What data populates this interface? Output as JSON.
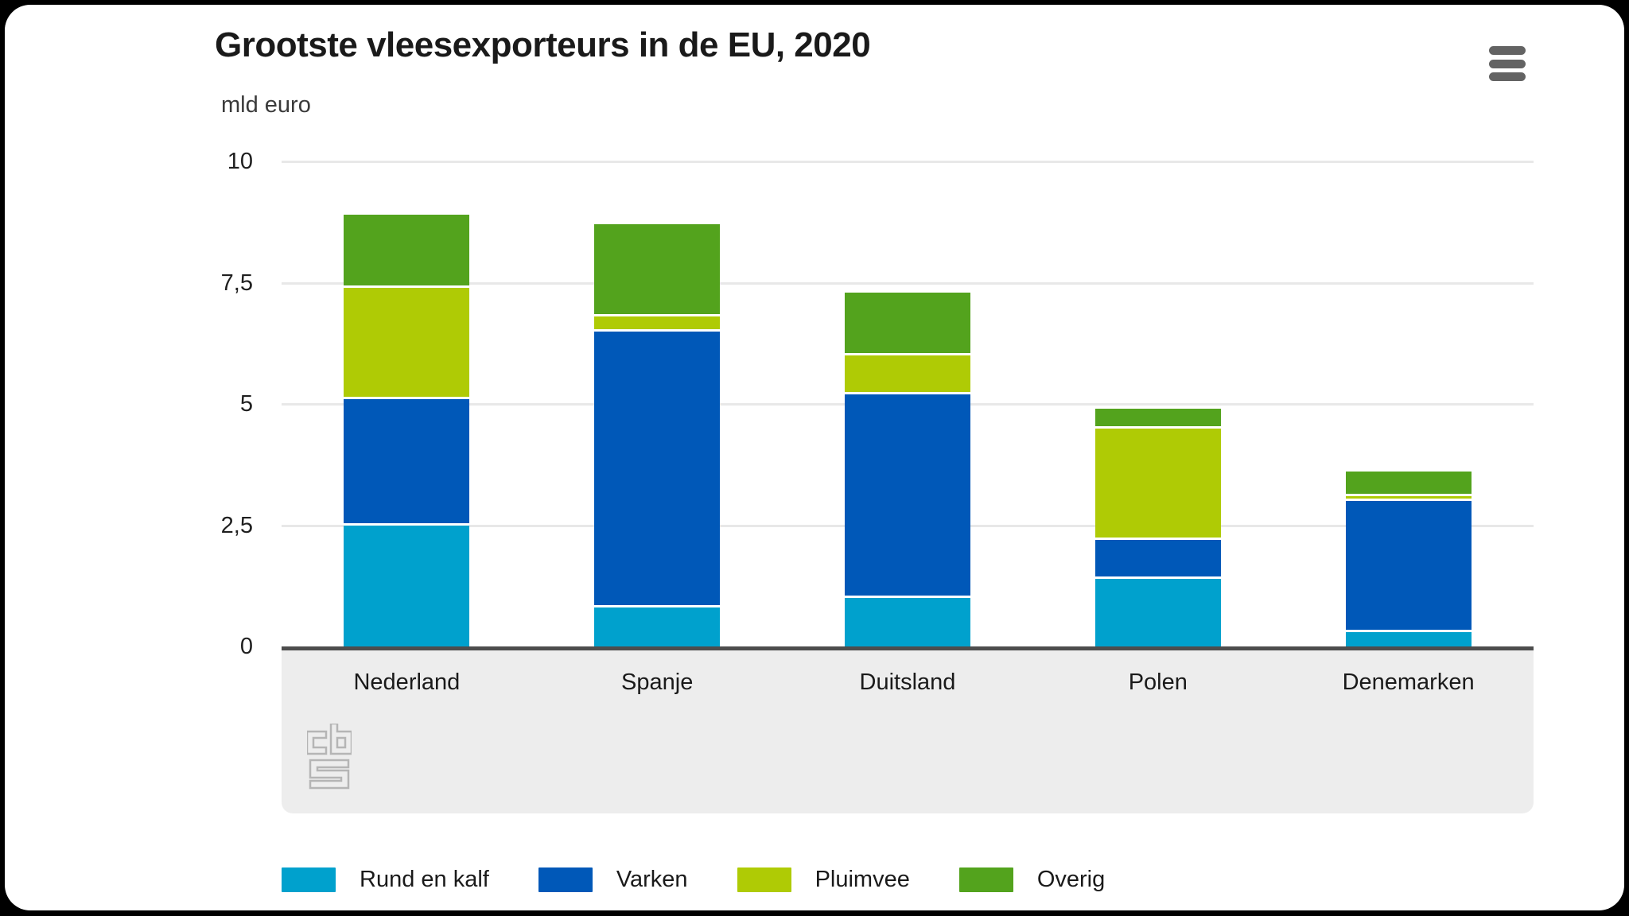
{
  "chart": {
    "title": "Grootste vleesexporteurs in de EU, 2020",
    "unit": "mld euro"
  },
  "icons": {
    "menu": "hamburger-menu-icon",
    "watermark": "cbs-logo"
  },
  "colors": {
    "rund_en_kalf": "#00a1cd",
    "varken": "#0058b8",
    "pluimvee": "#afcb05",
    "overig": "#53a31d",
    "axis_line": "#4d4d4d",
    "gridline": "#e8e8e8",
    "band_background": "#ededed",
    "text": "#1a1a1a",
    "watermark_stroke": "#b5b5b5"
  },
  "chart_data": {
    "type": "bar",
    "stacked": true,
    "title": "Grootste vleesexporteurs in de EU, 2020",
    "xlabel": "",
    "ylabel": "mld euro",
    "categories": [
      "Nederland",
      "Spanje",
      "Duitsland",
      "Polen",
      "Denemarken"
    ],
    "series": [
      {
        "name": "Rund en kalf",
        "color": "#00a1cd",
        "values": [
          2.5,
          0.8,
          1.0,
          1.4,
          0.3
        ]
      },
      {
        "name": "Varken",
        "color": "#0058b8",
        "values": [
          2.6,
          5.7,
          4.2,
          0.8,
          2.7
        ]
      },
      {
        "name": "Pluimvee",
        "color": "#afcb05",
        "values": [
          2.3,
          0.3,
          0.8,
          2.3,
          0.1
        ]
      },
      {
        "name": "Overig",
        "color": "#53a31d",
        "values": [
          1.5,
          1.9,
          1.3,
          0.4,
          0.5
        ]
      }
    ],
    "totals": [
      8.9,
      8.7,
      7.3,
      4.9,
      3.6
    ],
    "ylim": [
      0,
      10
    ],
    "yticks": [
      {
        "value": 0,
        "label": "0"
      },
      {
        "value": 2.5,
        "label": "2,5"
      },
      {
        "value": 5,
        "label": "5"
      },
      {
        "value": 7.5,
        "label": "7,5"
      },
      {
        "value": 10,
        "label": "10"
      }
    ],
    "grid": true,
    "legend_position": "bottom"
  }
}
